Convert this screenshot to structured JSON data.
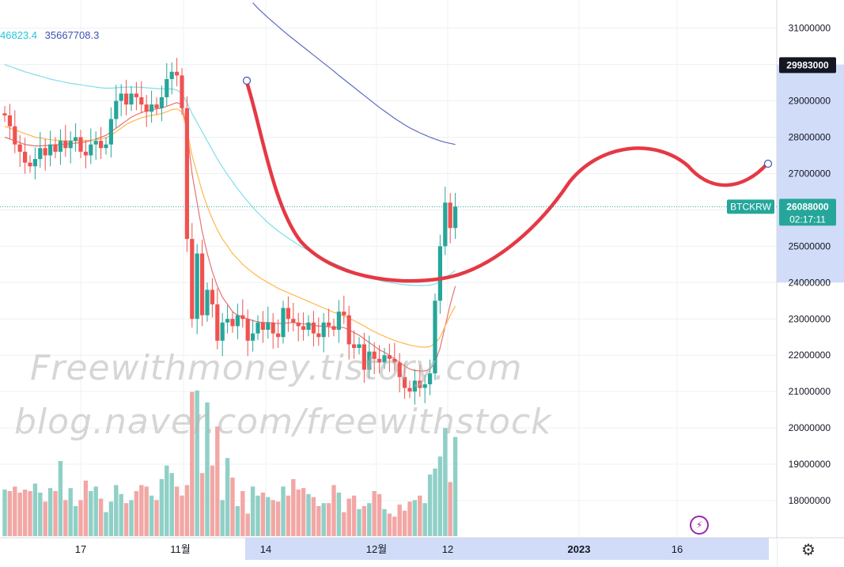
{
  "chart_data": {
    "type": "candlestick",
    "symbol": "BTCKRW",
    "price_axis": {
      "ticks": [
        18000000,
        19000000,
        20000000,
        21000000,
        22000000,
        23000000,
        24000000,
        25000000,
        26000000,
        27000000,
        28000000,
        29000000,
        30000000,
        31000000
      ],
      "tick_labels": [
        "18000000",
        "19000000",
        "20000000",
        "21000000",
        "22000000",
        "23000000",
        "24000000",
        "25000000",
        "26000000",
        "27000000",
        "28000000",
        "29000000",
        "30000000",
        "31000000"
      ],
      "ylim": [
        17000000,
        31700000
      ]
    },
    "time_axis": {
      "labels": [
        "17",
        "11월",
        "14",
        "12월",
        "12",
        "2023",
        "16"
      ]
    },
    "legend_values": [
      "46823.4",
      "35667708.3"
    ],
    "last_price_label": "26088000",
    "countdown": "02:17:11",
    "high_marker_label": "29983000",
    "candles": {
      "count": 90,
      "closes": [
        28600000,
        28300000,
        27800000,
        27600000,
        27300000,
        27200000,
        27400000,
        27700000,
        27500000,
        27800000,
        27600000,
        27900000,
        27700000,
        27900000,
        28000000,
        27600000,
        27500000,
        27800000,
        27900000,
        27700000,
        27800000,
        28500000,
        29000000,
        29200000,
        28900000,
        29200000,
        29100000,
        28900000,
        28700000,
        28900000,
        28800000,
        29100000,
        29600000,
        29800000,
        29700000,
        28800000,
        25200000,
        23000000,
        24800000,
        23100000,
        23800000,
        23400000,
        22400000,
        22900000,
        23000000,
        22800000,
        23100000,
        23000000,
        22400000,
        22600000,
        22900000,
        22700000,
        22900000,
        22600000,
        22500000,
        23300000,
        23000000,
        22900000,
        22800000,
        22700000,
        22900000,
        22600000,
        22500000,
        22900000,
        22800000,
        22700000,
        23200000,
        23100000,
        22300000,
        22200000,
        22300000,
        21600000,
        22100000,
        21900000,
        21800000,
        22000000,
        21900000,
        21800000,
        21400000,
        21100000,
        21000000,
        21300000,
        21100000,
        21200000,
        21500000,
        23500000,
        25000000,
        26200000,
        25500000,
        26088000
      ],
      "volumes": [
        31,
        30,
        33,
        29,
        31,
        30,
        35,
        29,
        23,
        32,
        30,
        50,
        24,
        32,
        20,
        24,
        37,
        30,
        33,
        25,
        16,
        23,
        34,
        28,
        22,
        24,
        30,
        34,
        33,
        27,
        24,
        38,
        47,
        42,
        33,
        27,
        34,
        96,
        97,
        42,
        89,
        47,
        73,
        24,
        52,
        39,
        20,
        30,
        15,
        33,
        27,
        29,
        26,
        24,
        23,
        33,
        27,
        38,
        31,
        32,
        28,
        26,
        20,
        22,
        22,
        34,
        29,
        16,
        25,
        27,
        18,
        20,
        22,
        30,
        28,
        18,
        15,
        13,
        21,
        17,
        23,
        24,
        27,
        22,
        41,
        45,
        53,
        72,
        36,
        66
      ]
    },
    "moving_averages": [
      {
        "color": "#e57373",
        "values": [
          28000000,
          27950000,
          27900000,
          27850000,
          27800000,
          27780000,
          27760000,
          27760000,
          27770000,
          27780000,
          27790000,
          27800000,
          27810000,
          27820000,
          27840000,
          27850000,
          27870000,
          27900000,
          27950000,
          28000000,
          28050000,
          28150000,
          28250000,
          28350000,
          28450000,
          28550000,
          28620000,
          28680000,
          28720000,
          28760000,
          28780000,
          28800000,
          28850000,
          28900000,
          28950000,
          28900000,
          28200000,
          27000000,
          26200000,
          25400000,
          24800000,
          24300000,
          23900000,
          23600000,
          23400000,
          23200000,
          23100000,
          23050000,
          23000000,
          22950000,
          22920000,
          22900000,
          22900000,
          22890000,
          22870000,
          22880000,
          22890000,
          22900000,
          22880000,
          22860000,
          22850000,
          22830000,
          22800000,
          22800000,
          22780000,
          22760000,
          22770000,
          22760000,
          22700000,
          22620000,
          22550000,
          22450000,
          22350000,
          22250000,
          22150000,
          22080000,
          22000000,
          21900000,
          21800000,
          21700000,
          21620000,
          21580000,
          21570000,
          21570000,
          21610000,
          21800000,
          22200000,
          22800000,
          23400000,
          23900000
        ]
      },
      {
        "color": "#ffb74d",
        "values": [
          28300000,
          28250000,
          28200000,
          28150000,
          28100000,
          28050000,
          28000000,
          27980000,
          27950000,
          27930000,
          27920000,
          27910000,
          27900000,
          27900000,
          27900000,
          27900000,
          27910000,
          27920000,
          27930000,
          27950000,
          27980000,
          28050000,
          28150000,
          28250000,
          28350000,
          28420000,
          28480000,
          28530000,
          28570000,
          28600000,
          28620000,
          28650000,
          28700000,
          28760000,
          28780000,
          28700000,
          28200000,
          27500000,
          27000000,
          26500000,
          26100000,
          25750000,
          25450000,
          25200000,
          25000000,
          24800000,
          24650000,
          24500000,
          24380000,
          24270000,
          24170000,
          24080000,
          24000000,
          23920000,
          23840000,
          23780000,
          23720000,
          23660000,
          23600000,
          23540000,
          23480000,
          23420000,
          23360000,
          23300000,
          23240000,
          23180000,
          23130000,
          23080000,
          23020000,
          22950000,
          22880000,
          22800000,
          22720000,
          22650000,
          22580000,
          22520000,
          22460000,
          22410000,
          22360000,
          22320000,
          22280000,
          22250000,
          22230000,
          22220000,
          22240000,
          22320000,
          22500000,
          22800000,
          23100000,
          23350000
        ]
      },
      {
        "color": "#80deea",
        "values": [
          30000000,
          29950000,
          29900000,
          29850000,
          29800000,
          29760000,
          29720000,
          29680000,
          29640000,
          29600000,
          29570000,
          29540000,
          29510000,
          29480000,
          29460000,
          29440000,
          29420000,
          29400000,
          29380000,
          29360000,
          29350000,
          29350000,
          29360000,
          29370000,
          29380000,
          29380000,
          29380000,
          29370000,
          29360000,
          29350000,
          29340000,
          29330000,
          29330000,
          29330000,
          29300000,
          29200000,
          28950000,
          28650000,
          28400000,
          28150000,
          27900000,
          27650000,
          27400000,
          27180000,
          26970000,
          26770000,
          26580000,
          26400000,
          26230000,
          26070000,
          25920000,
          25780000,
          25650000,
          25530000,
          25420000,
          25320000,
          25220000,
          25130000,
          25040000,
          24960000,
          24880000,
          24800000,
          24730000,
          24660000,
          24590000,
          24530000,
          24470000,
          24410000,
          24350000,
          24290000,
          24240000,
          24190000,
          24140000,
          24100000,
          24060000,
          24030000,
          24000000,
          23980000,
          23960000,
          23940000,
          23930000,
          23920000,
          23920000,
          23920000,
          23930000,
          23960000,
          24030000,
          24130000,
          24230000,
          24330000
        ]
      },
      {
        "color": "#5c6bc0",
        "values": [
          null,
          null,
          null,
          null,
          null,
          null,
          null,
          null,
          null,
          null,
          null,
          null,
          null,
          null,
          null,
          null,
          null,
          null,
          null,
          null,
          null,
          null,
          null,
          null,
          null,
          null,
          null,
          null,
          null,
          null,
          null,
          null,
          null,
          null,
          null,
          null,
          null,
          null,
          null,
          null,
          null,
          null,
          null,
          null,
          null,
          null,
          null,
          null,
          null,
          31700000,
          31550000,
          31420000,
          31290000,
          31170000,
          31050000,
          30930000,
          30810000,
          30700000,
          30590000,
          30480000,
          30370000,
          30260000,
          30150000,
          30040000,
          29930000,
          29820000,
          29700000,
          29590000,
          29480000,
          29370000,
          29260000,
          29150000,
          29040000,
          28930000,
          28820000,
          28720000,
          28620000,
          28520000,
          28430000,
          28340000,
          28260000,
          28190000,
          28120000,
          28060000,
          28000000,
          27950000,
          27900000,
          27860000,
          27830000,
          27800000
        ]
      }
    ],
    "annotation_curve_color": "#e53945",
    "watermarks": [
      "Freewithmoney.tistory.com",
      "blog.naver.com/freewithstock"
    ],
    "colors": {
      "up": "#26a69a",
      "down": "#ef5350",
      "up_volume": "#8fd0c6",
      "down_volume": "#f2a7a5",
      "axis_bg_highlight": "#d1dcf8"
    }
  }
}
